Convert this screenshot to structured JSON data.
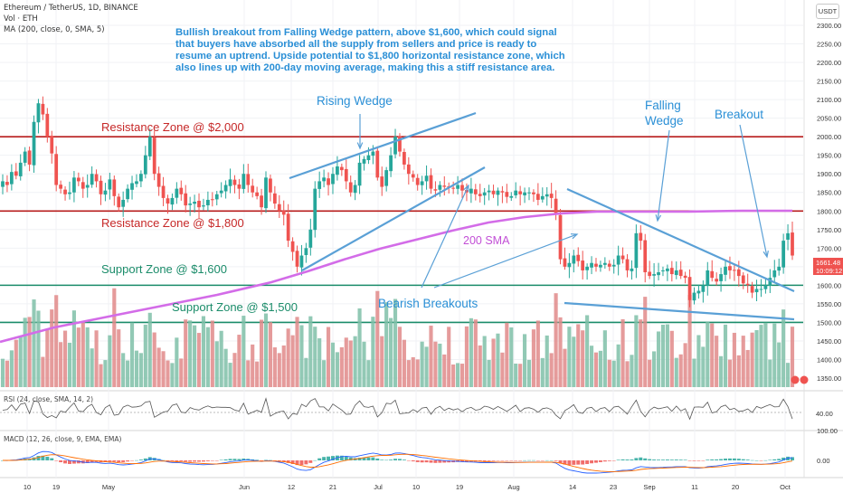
{
  "header": {
    "symbol": "Ethereum / TetherUS, 1D, BINANCE",
    "vol": "Vol · ETH",
    "ma": "MA (200, close, 0, SMA, 5)",
    "currency": "USDT",
    "rsi": "RSI (24, close, SMA, 14, 2)",
    "macd": "MACD (12, 26, close, 9, EMA, EMA)"
  },
  "annotation": "Bullish breakout from Falling Wedge pattern, above $1,600, which could signal that buyers have absorbed all the supply from sellers and price is ready to resume an uptrend. Upside potential to $1,800 horizontal resistance zone, which also lines up with 200-day moving average, making this a stiff resistance area.",
  "labels": {
    "resistance_2000": "Resistance Zone @ $2,000",
    "resistance_1800": "Resistance Zone @ $1,800",
    "support_1600": "Support Zone @ $1,600",
    "support_1500": "Support Zone @ $1,500",
    "rising_wedge": "Rising Wedge",
    "falling_wedge": "Falling Wedge",
    "breakout": "Breakout",
    "sma200": "200 SMA",
    "bearish": "Bearish Breakouts"
  },
  "price_badge": {
    "price": "1661.48",
    "countdown": "10:09:12"
  },
  "rsi_value": "40.00",
  "colors": {
    "up": "#26a69a",
    "down": "#ef5350",
    "sma": "#d36ce8",
    "annotation": "#2a8fd6",
    "resistance": "#b71c1c",
    "support": "#1b8c6a"
  },
  "chart_data": {
    "type": "candlestick",
    "price_axis": {
      "min": 1350,
      "max": 2300,
      "ticks": [
        "2300.00",
        "2250.00",
        "2200.00",
        "2150.00",
        "2100.00",
        "2050.00",
        "2000.00",
        "1950.00",
        "1900.00",
        "1850.00",
        "1800.00",
        "1750.00",
        "1700.00",
        "1650.00",
        "1600.00",
        "1550.00",
        "1500.00",
        "1450.00",
        "1400.00",
        "1350.00"
      ]
    },
    "time_ticks": [
      "10",
      "19",
      "May",
      "Jun",
      "12",
      "21",
      "Jul",
      "10",
      "19",
      "Aug",
      "14",
      "23",
      "Sep",
      "11",
      "20",
      "Oct"
    ],
    "rsi_ticks": [
      "40.00"
    ],
    "macd_ticks": [
      "100.00",
      "0.00"
    ],
    "close": [
      1880,
      1870,
      1905,
      1895,
      1930,
      1960,
      1925,
      2040,
      2090,
      2060,
      2000,
      1955,
      1870,
      1860,
      1845,
      1850,
      1890,
      1880,
      1860,
      1870,
      1900,
      1880,
      1845,
      1855,
      1885,
      1840,
      1810,
      1830,
      1860,
      1875,
      1880,
      1900,
      1950,
      2000,
      1900,
      1865,
      1835,
      1820,
      1835,
      1860,
      1845,
      1815,
      1820,
      1825,
      1810,
      1815,
      1830,
      1830,
      1845,
      1855,
      1870,
      1885,
      1870,
      1860,
      1900,
      1870,
      1850,
      1840,
      1810,
      1890,
      1850,
      1820,
      1800,
      1790,
      1720,
      1690,
      1650,
      1680,
      1700,
      1750,
      1860,
      1880,
      1890,
      1870,
      1900,
      1920,
      1910,
      1880,
      1850,
      1870,
      1930,
      1940,
      1950,
      1960,
      1890,
      1865,
      1910,
      1950,
      2000,
      1960,
      1925,
      1900,
      1890,
      1870,
      1880,
      1895,
      1860,
      1855,
      1870,
      1865,
      1865,
      1860,
      1870,
      1855,
      1850,
      1860,
      1845,
      1840,
      1850,
      1855,
      1845,
      1855,
      1850,
      1838,
      1840,
      1855,
      1845,
      1850,
      1850,
      1845,
      1830,
      1840,
      1845,
      1835,
      1790,
      1670,
      1650,
      1660,
      1680,
      1665,
      1640,
      1650,
      1660,
      1650,
      1655,
      1660,
      1650,
      1655,
      1680,
      1670,
      1640,
      1645,
      1740,
      1720,
      1635,
      1625,
      1630,
      1635,
      1640,
      1645,
      1630,
      1640,
      1625,
      1620,
      1560,
      1580,
      1585,
      1600,
      1640,
      1620,
      1610,
      1630,
      1650,
      1640,
      1640,
      1625,
      1605,
      1600,
      1580,
      1590,
      1590,
      1600,
      1620,
      1640,
      1650,
      1720,
      1740,
      1680
    ]
  }
}
